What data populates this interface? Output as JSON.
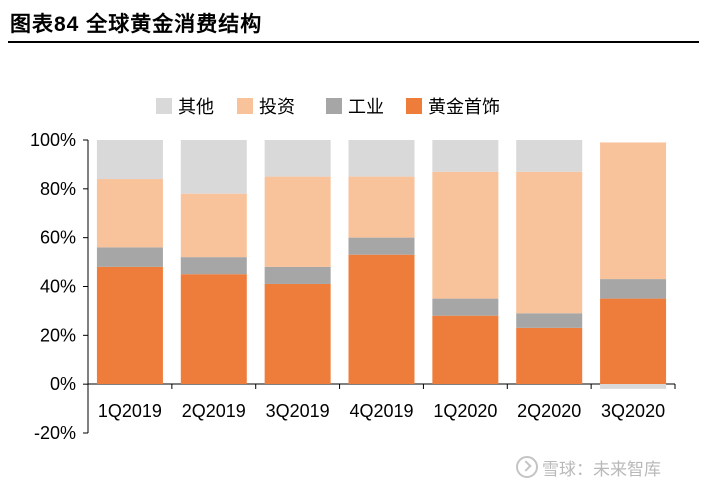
{
  "figure": {
    "title": "图表84   全球黄金消费结构",
    "watermark": "雪球：未来智库"
  },
  "chart_data": {
    "type": "bar",
    "stacked": true,
    "title": "全球黄金消费结构",
    "categories": [
      "1Q2019",
      "2Q2019",
      "3Q2019",
      "4Q2019",
      "1Q2020",
      "2Q2020",
      "3Q2020"
    ],
    "series": [
      {
        "name": "黄金首饰",
        "color": "#ee7d3b",
        "values": [
          48,
          45,
          41,
          53,
          28,
          23,
          35
        ]
      },
      {
        "name": "工业",
        "color": "#a6a6a6",
        "values": [
          8,
          7,
          7,
          7,
          7,
          6,
          8
        ]
      },
      {
        "name": "投资",
        "color": "#f8c29b",
        "values": [
          28,
          26,
          37,
          25,
          52,
          58,
          56
        ]
      },
      {
        "name": "其他",
        "color": "#d9d9d9",
        "values": [
          16,
          22,
          15,
          15,
          13,
          13,
          -2
        ]
      }
    ],
    "legend_order": [
      "其他",
      "投资",
      "工业",
      "黄金首饰"
    ],
    "legend_position": "top",
    "ylim": [
      -20,
      100
    ],
    "yticks": [
      "100%",
      "80%",
      "60%",
      "40%",
      "20%",
      "0%",
      "-20%"
    ],
    "xlabel": "",
    "ylabel": "",
    "grid": false
  }
}
